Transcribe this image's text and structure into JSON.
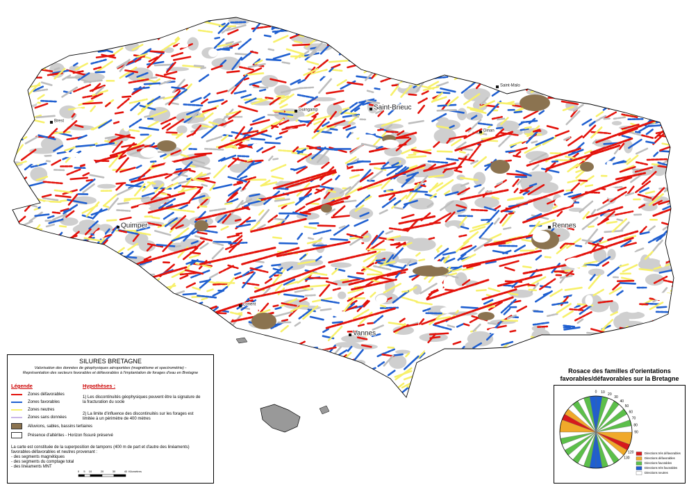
{
  "map": {
    "cities": [
      {
        "label": "Saint-Brieuc"
      },
      {
        "label": "Quimper"
      },
      {
        "label": "Rennes"
      },
      {
        "label": "Vannes"
      },
      {
        "label": "Guingamp"
      },
      {
        "label": "Saint-Malo"
      },
      {
        "label": "Dinan"
      },
      {
        "label": "Lorient"
      },
      {
        "label": "Brest"
      }
    ]
  },
  "legend_box": {
    "title": "SILURES BRETAGNE",
    "subtitle_lines": [
      "Valorisation des données de géophysiques aéroportées (magnétisme et spectrométrie) -",
      "Représentation des secteurs favorables et défavorables à l'implantation de forages d'eau en Bretagne"
    ],
    "legend_heading": "Légende",
    "items": [
      {
        "label": "Zones défavorables",
        "color": "#e3120b"
      },
      {
        "label": "Zones favorables",
        "color": "#1f5fd0"
      },
      {
        "label": "Zones neutres",
        "color": "#f7f06a"
      },
      {
        "label": "Zones sans données",
        "color": "#c9b6e6"
      },
      {
        "label": "Alluvions, sables, bassins tertiaires",
        "color": "#8b7350"
      },
      {
        "label": "Présence d'altérites - Horizon fissuré préservé",
        "color": "#ffffff"
      }
    ],
    "hypotheses_heading": "Hypothèses :",
    "hypotheses": [
      "1) Les discontinuités géophysiques peuvent être la signature de la fracturation du socle",
      "2) La limite d'influence des discontinuités sur les forages est limitée à un périmètre de 400 mètres"
    ],
    "note": "La carte est constituée de la superposition de tampons (400 m de part et d'autre des linéaments) favorables-défavorables et neutres provenant :",
    "note_items": [
      "- des segments magnétiques",
      "- des segments du comptage total",
      "- des linéaments MNT"
    ]
  },
  "scale_bar": {
    "ticks": [
      0,
      5,
      10,
      20,
      30,
      40
    ],
    "unit": "Kilomètres"
  },
  "rose": {
    "title_lines": [
      "Rosace des familles d'orientations",
      "favorables/défavorables sur la Bretagne"
    ],
    "angle_ticks": [
      0,
      10,
      20,
      30,
      40,
      50,
      60,
      70,
      80,
      90,
      120,
      130
    ],
    "legend": [
      {
        "label": "Directions très défavorables",
        "color": "#d7191c",
        "sectors": [
          [
            110,
            120
          ]
        ]
      },
      {
        "label": "Directions défavorables",
        "color": "#f0a92a",
        "sectors": [
          [
            90,
            110
          ],
          [
            120,
            130
          ]
        ]
      },
      {
        "label": "Directions favorables",
        "color": "#5cbf4a",
        "sectors": [
          [
            10,
            20
          ],
          [
            30,
            40
          ],
          [
            50,
            60
          ],
          [
            70,
            80
          ],
          [
            140,
            150
          ],
          [
            160,
            170
          ]
        ]
      },
      {
        "label": "Directions très favorables",
        "color": "#1f5fd0",
        "sectors": [
          [
            0,
            10
          ],
          [
            170,
            180
          ]
        ]
      },
      {
        "label": "Directions neutres",
        "color": "#ffffff",
        "sectors": [
          [
            20,
            30
          ],
          [
            40,
            50
          ],
          [
            60,
            70
          ],
          [
            80,
            90
          ],
          [
            130,
            140
          ],
          [
            150,
            160
          ]
        ]
      }
    ]
  }
}
